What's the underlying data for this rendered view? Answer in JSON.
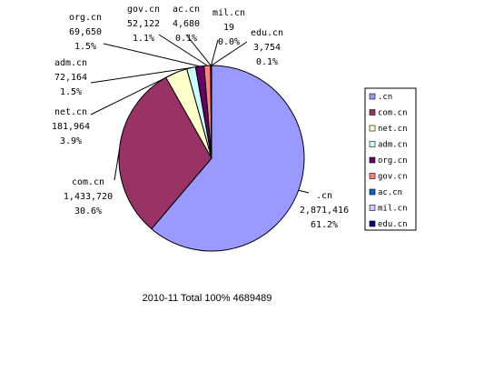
{
  "chart_data": {
    "type": "pie",
    "title": "",
    "caption": "2010-11 Total 100%  4689489",
    "slices": [
      {
        "name": ".cn",
        "value": 2871416,
        "value_label": "2,871,416",
        "percent_label": "61.2%",
        "color": "#9999ff"
      },
      {
        "name": "com.cn",
        "value": 1433720,
        "value_label": "1,433,720",
        "percent_label": "30.6%",
        "color": "#993366"
      },
      {
        "name": "net.cn",
        "value": 181964,
        "value_label": "181,964",
        "percent_label": "3.9%",
        "color": "#ffffcc"
      },
      {
        "name": "adm.cn",
        "value": 72164,
        "value_label": "72,164",
        "percent_label": "1.5%",
        "color": "#ccffff"
      },
      {
        "name": "org.cn",
        "value": 69650,
        "value_label": "69,650",
        "percent_label": "1.5%",
        "color": "#660066"
      },
      {
        "name": "gov.cn",
        "value": 52122,
        "value_label": "52,122",
        "percent_label": "1.1%",
        "color": "#ff8080"
      },
      {
        "name": "ac.cn",
        "value": 4680,
        "value_label": "4,680",
        "percent_label": "0.1%",
        "color": "#0066cc"
      },
      {
        "name": "mil.cn",
        "value": 19,
        "value_label": "19",
        "percent_label": "0.0%",
        "color": "#ccccff"
      },
      {
        "name": "edu.cn",
        "value": 3754,
        "value_label": "3,754",
        "percent_label": "0.1%",
        "color": "#000080"
      }
    ],
    "legend": {
      "placement": "right"
    },
    "start_direction": "top",
    "order": "clockwise"
  }
}
